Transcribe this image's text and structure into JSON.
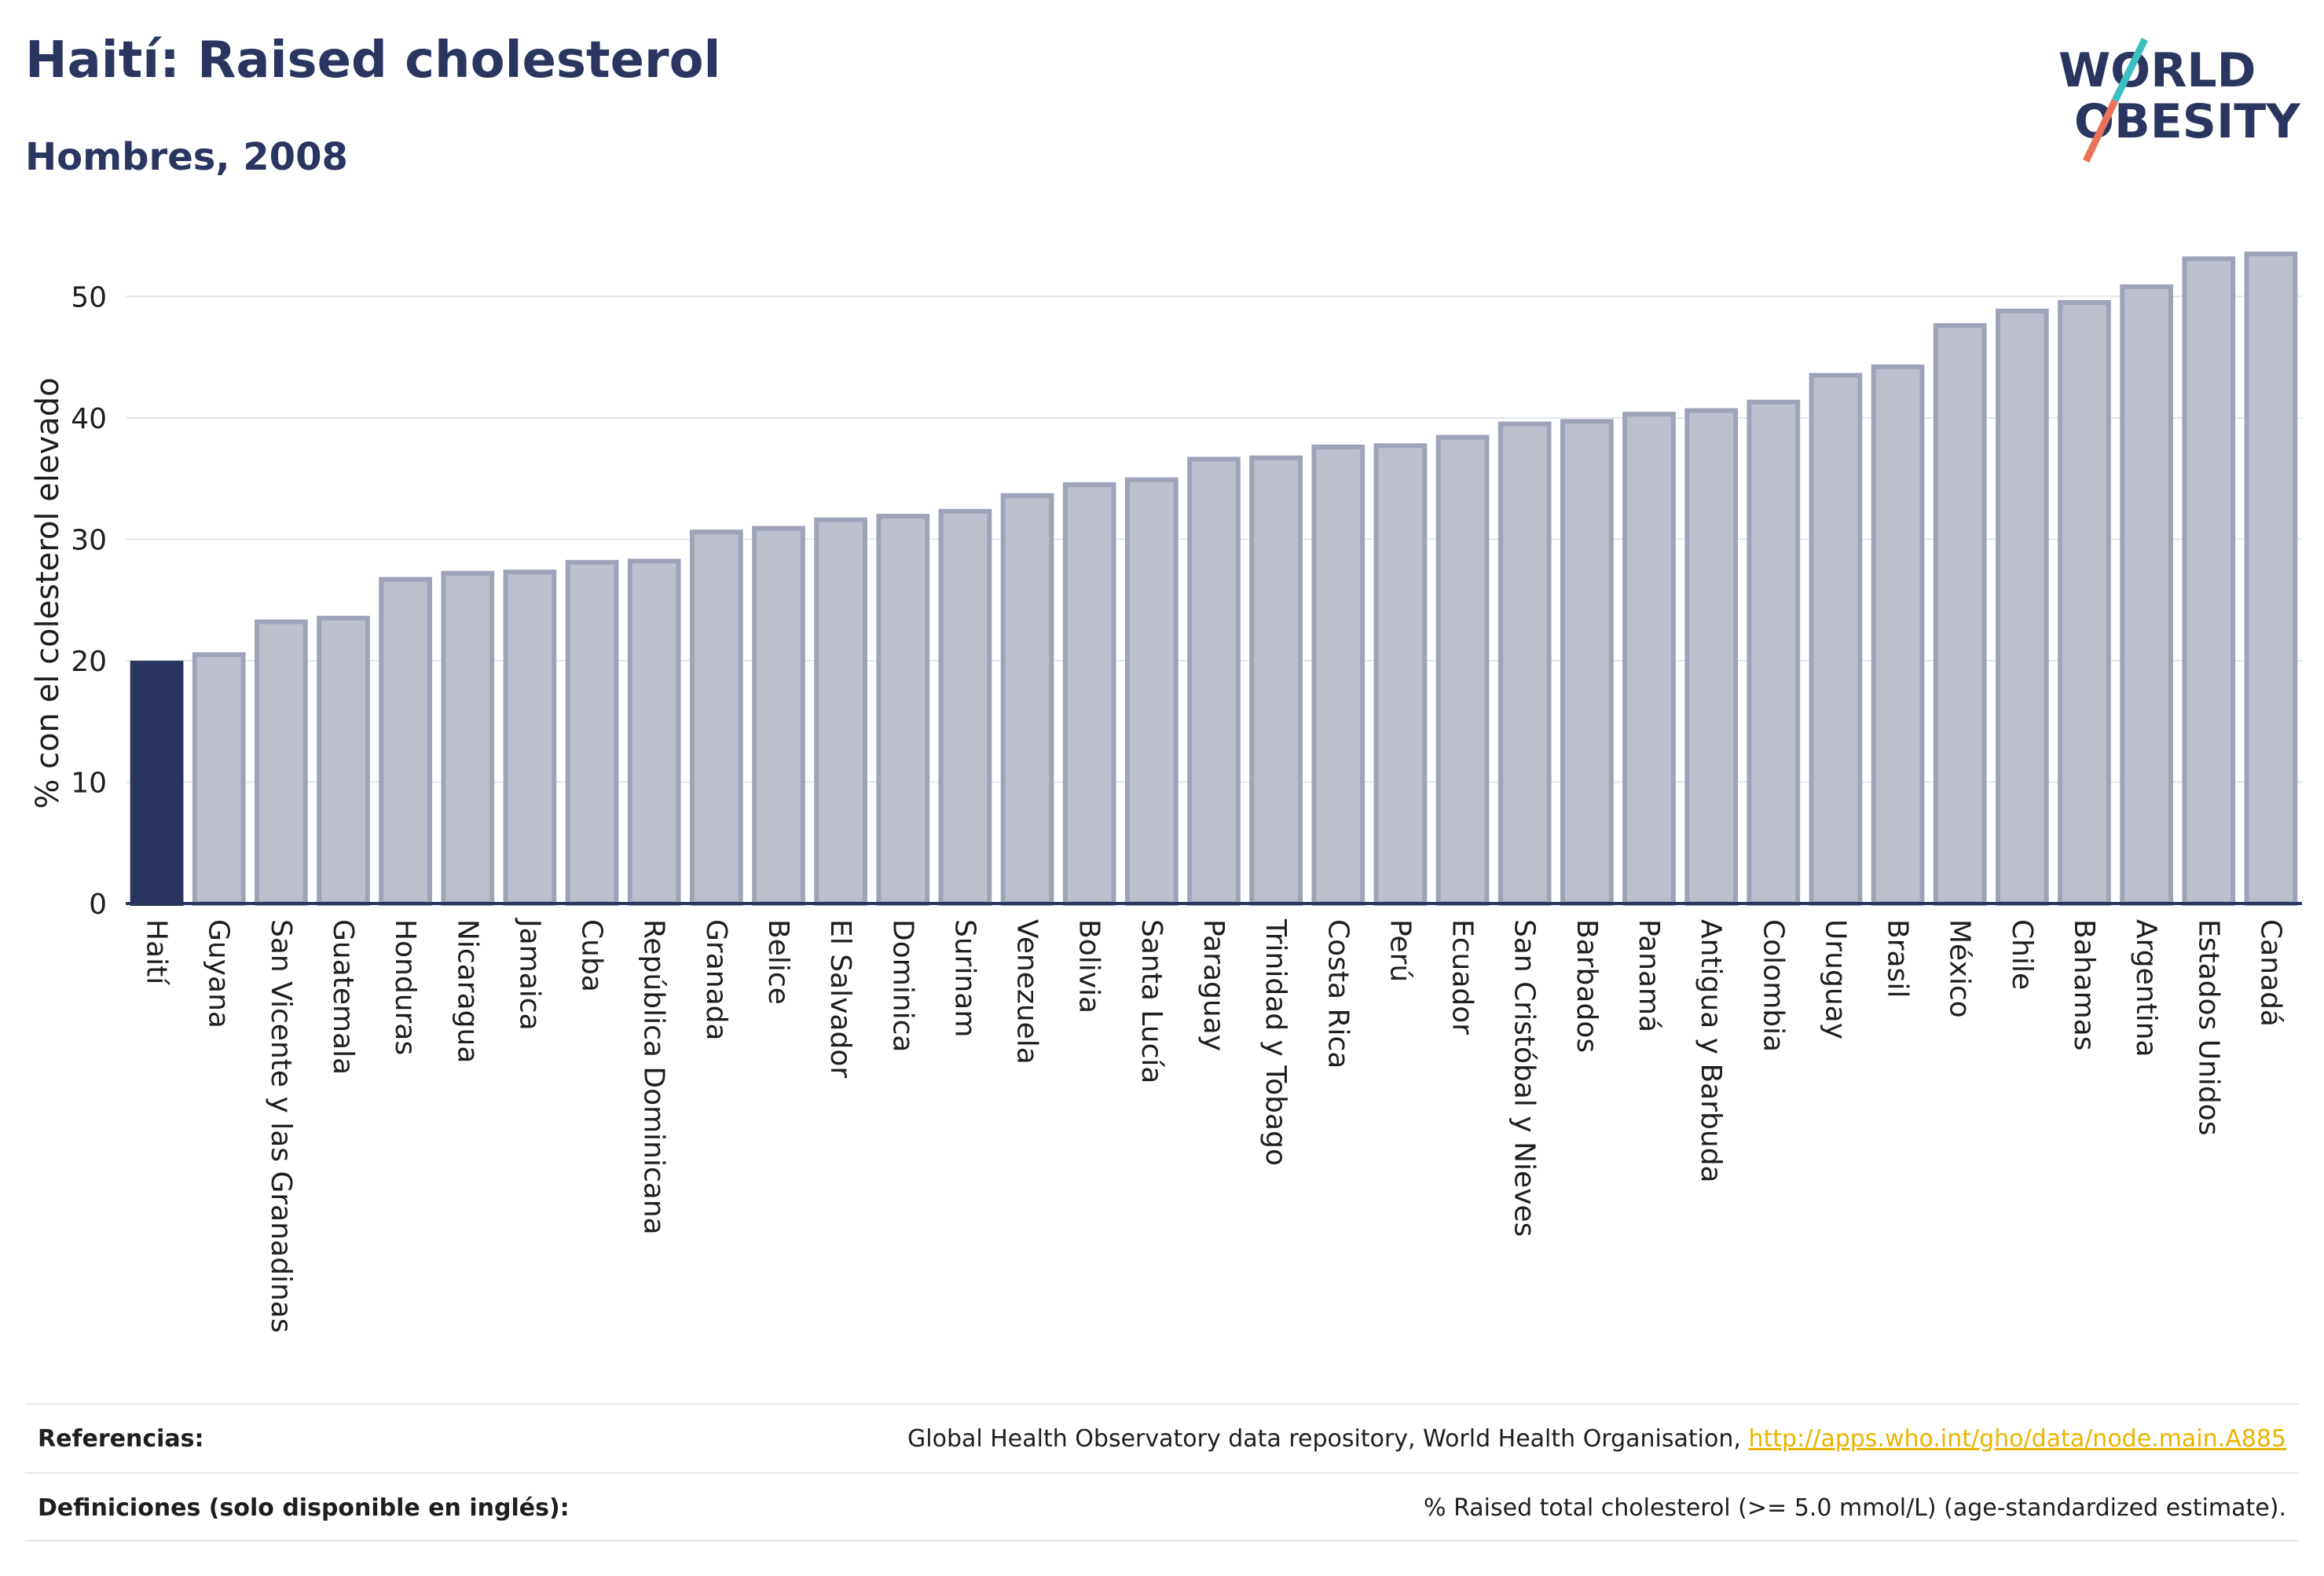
{
  "header": {
    "title": "Haití: Raised cholesterol",
    "subtitle": "Hombres, 2008"
  },
  "logo": {
    "line1": "WORLD",
    "line2": "OBESITY",
    "colors": {
      "text": "#2a3560",
      "slash_teal": "#3bbfc0",
      "slash_coral": "#e8735a"
    }
  },
  "chart_data": {
    "type": "bar",
    "ylabel": "% con el colesterol elevado",
    "xlabel": "",
    "ylim": [
      0,
      55
    ],
    "yticks": [
      0,
      10,
      20,
      30,
      40,
      50
    ],
    "grid": true,
    "highlight_category": "Haití",
    "colors": {
      "highlight": "#2a3560",
      "bar_fill": "#bcc0cd",
      "bar_stroke": "#9ea3b8",
      "axis": "#2a3560",
      "grid": "#e4e6ec"
    },
    "categories": [
      "Haití",
      "Guyana",
      "San Vicente y las Granadinas",
      "Guatemala",
      "Honduras",
      "Nicaragua",
      "Jamaica",
      "Cuba",
      "República Dominicana",
      "Granada",
      "Belice",
      "El Salvador",
      "Dominica",
      "Surinam",
      "Venezuela",
      "Bolivia",
      "Santa Lucía",
      "Paraguay",
      "Trinidad y Tobago",
      "Costa Rica",
      "Perú",
      "Ecuador",
      "San Cristóbal y Nieves",
      "Barbados",
      "Panamá",
      "Antigua y Barbuda",
      "Colombia",
      "Uruguay",
      "Brasil",
      "México",
      "Chile",
      "Bahamas",
      "Argentina",
      "Estados Unidos",
      "Canadá"
    ],
    "values": [
      19.8,
      20.5,
      23.2,
      23.5,
      26.7,
      27.2,
      27.3,
      28.1,
      28.2,
      30.6,
      30.9,
      31.6,
      31.9,
      32.3,
      33.6,
      34.5,
      34.9,
      36.6,
      36.7,
      37.6,
      37.7,
      38.4,
      39.5,
      39.7,
      40.3,
      40.6,
      41.3,
      43.5,
      44.2,
      47.6,
      48.8,
      49.5,
      50.8,
      53.1,
      53.5
    ]
  },
  "footer": {
    "references_label": "Referencias:",
    "references_text": "Global Health Observatory data repository, World Health Organisation, ",
    "references_link": "http://apps.who.int/gho/data/node.main.A885",
    "definitions_label": "Definiciones (solo disponible en inglés):",
    "definitions_text": "% Raised total cholesterol (>= 5.0 mmol/L) (age-standardized estimate)."
  }
}
